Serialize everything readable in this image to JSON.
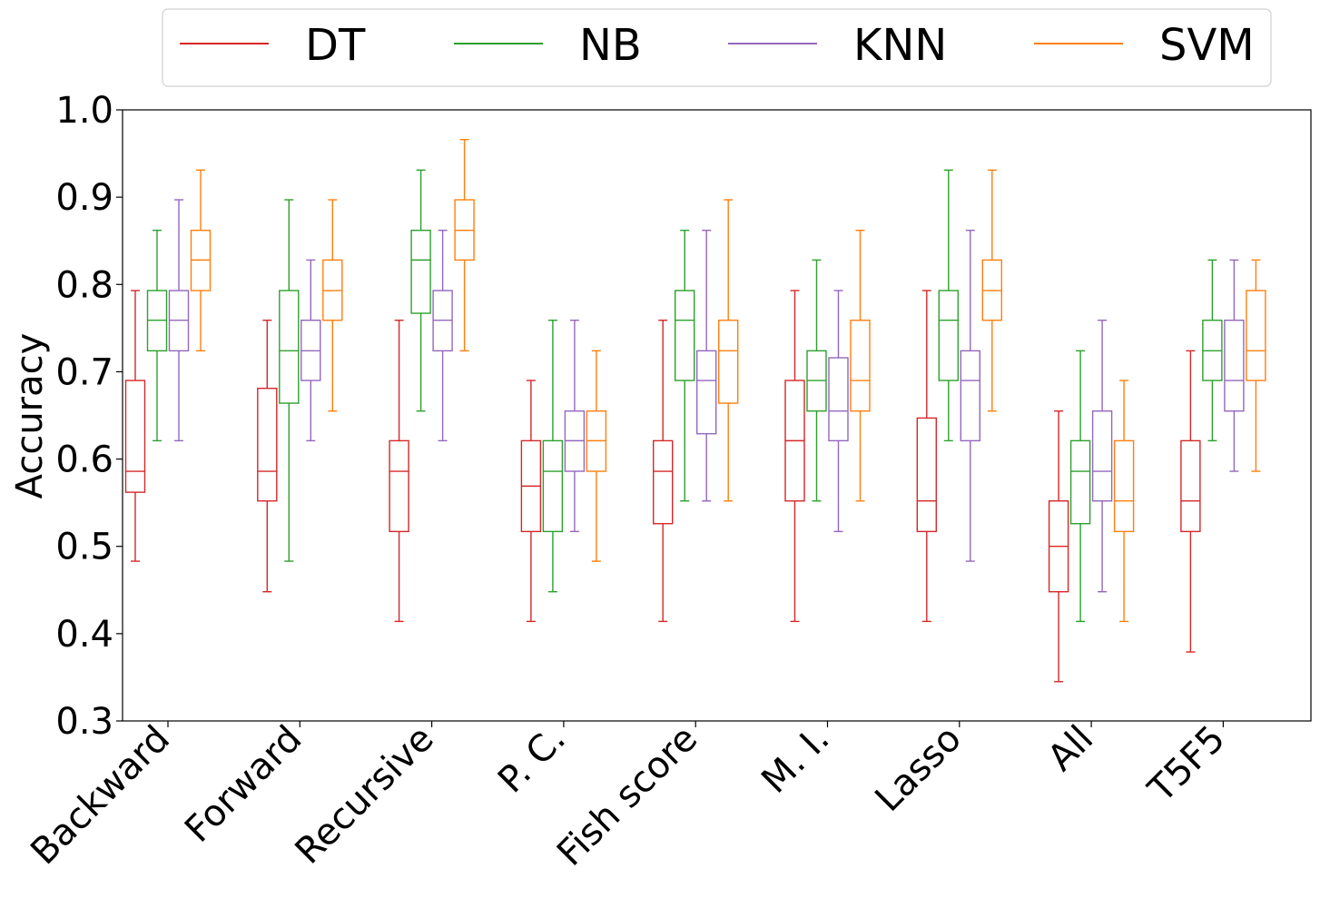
{
  "chart_data": {
    "type": "boxplot",
    "title": "",
    "xlabel": "",
    "ylabel": "Accuracy",
    "ylim": [
      0.3,
      1.0
    ],
    "yticks": [
      "0.3",
      "0.4",
      "0.5",
      "0.6",
      "0.7",
      "0.8",
      "0.9",
      "1.0"
    ],
    "grid": false,
    "legend_position": "top-center",
    "categories": [
      "Backward",
      "Forward",
      "Recursive",
      "P. C.",
      "Fish score",
      "M. I.",
      "Lasso",
      "All",
      "T5F5"
    ],
    "series": [
      {
        "name": "DT",
        "color": "#d62728",
        "boxes": [
          {
            "whislo": 0.483,
            "q1": 0.562,
            "median": 0.586,
            "q3": 0.69,
            "whishi": 0.793
          },
          {
            "whislo": 0.448,
            "q1": 0.552,
            "median": 0.586,
            "q3": 0.681,
            "whishi": 0.759
          },
          {
            "whislo": 0.414,
            "q1": 0.517,
            "median": 0.586,
            "q3": 0.621,
            "whishi": 0.759
          },
          {
            "whislo": 0.414,
            "q1": 0.517,
            "median": 0.569,
            "q3": 0.621,
            "whishi": 0.69
          },
          {
            "whislo": 0.414,
            "q1": 0.526,
            "median": 0.586,
            "q3": 0.621,
            "whishi": 0.759
          },
          {
            "whislo": 0.414,
            "q1": 0.552,
            "median": 0.621,
            "q3": 0.69,
            "whishi": 0.793
          },
          {
            "whislo": 0.414,
            "q1": 0.517,
            "median": 0.552,
            "q3": 0.647,
            "whishi": 0.793
          },
          {
            "whislo": 0.345,
            "q1": 0.448,
            "median": 0.5,
            "q3": 0.552,
            "whishi": 0.655
          },
          {
            "whislo": 0.379,
            "q1": 0.517,
            "median": 0.552,
            "q3": 0.621,
            "whishi": 0.724
          }
        ]
      },
      {
        "name": "NB",
        "color": "#2ca02c",
        "boxes": [
          {
            "whislo": 0.621,
            "q1": 0.724,
            "median": 0.759,
            "q3": 0.793,
            "whishi": 0.862
          },
          {
            "whislo": 0.483,
            "q1": 0.664,
            "median": 0.724,
            "q3": 0.793,
            "whishi": 0.897
          },
          {
            "whislo": 0.655,
            "q1": 0.767,
            "median": 0.828,
            "q3": 0.862,
            "whishi": 0.931
          },
          {
            "whislo": 0.448,
            "q1": 0.517,
            "median": 0.586,
            "q3": 0.621,
            "whishi": 0.759
          },
          {
            "whislo": 0.552,
            "q1": 0.69,
            "median": 0.759,
            "q3": 0.793,
            "whishi": 0.862
          },
          {
            "whislo": 0.552,
            "q1": 0.655,
            "median": 0.69,
            "q3": 0.724,
            "whishi": 0.828
          },
          {
            "whislo": 0.621,
            "q1": 0.69,
            "median": 0.759,
            "q3": 0.793,
            "whishi": 0.931
          },
          {
            "whislo": 0.414,
            "q1": 0.526,
            "median": 0.586,
            "q3": 0.621,
            "whishi": 0.724
          },
          {
            "whislo": 0.621,
            "q1": 0.69,
            "median": 0.724,
            "q3": 0.759,
            "whishi": 0.828
          }
        ]
      },
      {
        "name": "KNN",
        "color": "#9467bd",
        "boxes": [
          {
            "whislo": 0.621,
            "q1": 0.724,
            "median": 0.759,
            "q3": 0.793,
            "whishi": 0.897
          },
          {
            "whislo": 0.621,
            "q1": 0.69,
            "median": 0.724,
            "q3": 0.759,
            "whishi": 0.828
          },
          {
            "whislo": 0.621,
            "q1": 0.724,
            "median": 0.759,
            "q3": 0.793,
            "whishi": 0.862
          },
          {
            "whislo": 0.517,
            "q1": 0.586,
            "median": 0.621,
            "q3": 0.655,
            "whishi": 0.759
          },
          {
            "whislo": 0.552,
            "q1": 0.629,
            "median": 0.69,
            "q3": 0.724,
            "whishi": 0.862
          },
          {
            "whislo": 0.517,
            "q1": 0.621,
            "median": 0.655,
            "q3": 0.716,
            "whishi": 0.793
          },
          {
            "whislo": 0.483,
            "q1": 0.621,
            "median": 0.69,
            "q3": 0.724,
            "whishi": 0.862
          },
          {
            "whislo": 0.448,
            "q1": 0.552,
            "median": 0.586,
            "q3": 0.655,
            "whishi": 0.759
          },
          {
            "whislo": 0.586,
            "q1": 0.655,
            "median": 0.69,
            "q3": 0.759,
            "whishi": 0.828
          }
        ]
      },
      {
        "name": "SVM",
        "color": "#ff7f0e",
        "boxes": [
          {
            "whislo": 0.724,
            "q1": 0.793,
            "median": 0.828,
            "q3": 0.862,
            "whishi": 0.931
          },
          {
            "whislo": 0.655,
            "q1": 0.759,
            "median": 0.793,
            "q3": 0.828,
            "whishi": 0.897
          },
          {
            "whislo": 0.724,
            "q1": 0.828,
            "median": 0.862,
            "q3": 0.897,
            "whishi": 0.966
          },
          {
            "whislo": 0.483,
            "q1": 0.586,
            "median": 0.621,
            "q3": 0.655,
            "whishi": 0.724
          },
          {
            "whislo": 0.552,
            "q1": 0.664,
            "median": 0.724,
            "q3": 0.759,
            "whishi": 0.897
          },
          {
            "whislo": 0.552,
            "q1": 0.655,
            "median": 0.69,
            "q3": 0.759,
            "whishi": 0.862
          },
          {
            "whislo": 0.655,
            "q1": 0.759,
            "median": 0.793,
            "q3": 0.828,
            "whishi": 0.931
          },
          {
            "whislo": 0.414,
            "q1": 0.517,
            "median": 0.552,
            "q3": 0.621,
            "whishi": 0.69
          },
          {
            "whislo": 0.586,
            "q1": 0.69,
            "median": 0.724,
            "q3": 0.793,
            "whishi": 0.828
          }
        ]
      }
    ]
  }
}
